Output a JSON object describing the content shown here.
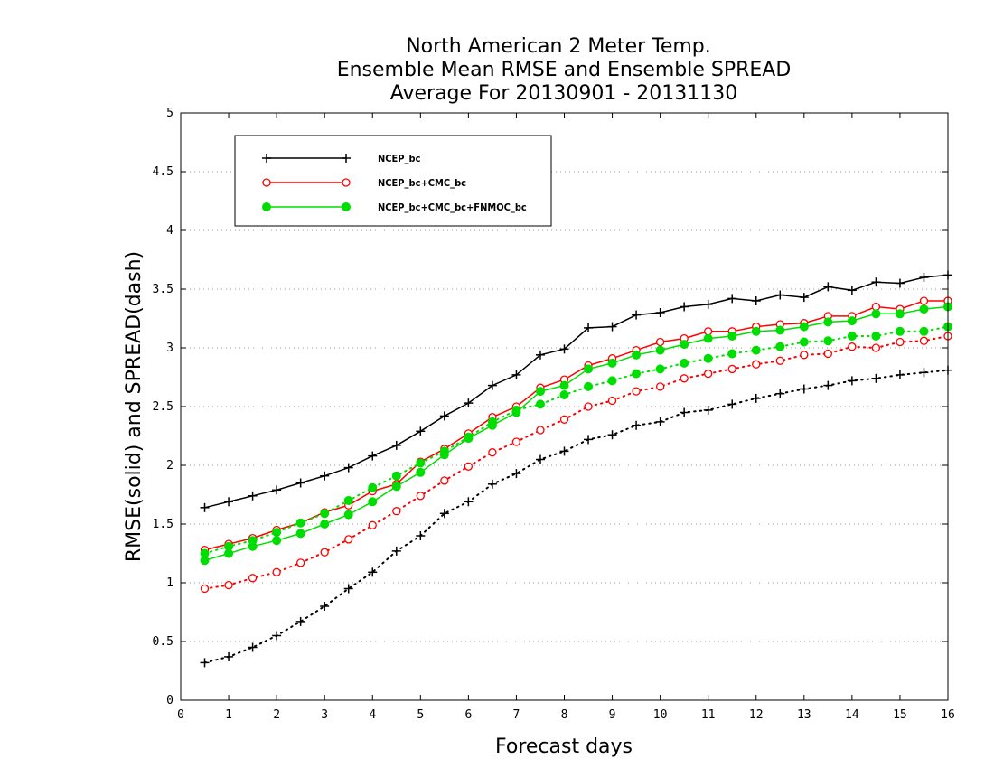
{
  "chart_data": {
    "type": "line",
    "title": [
      "North American 2 Meter Temp.",
      "Ensemble Mean RMSE and Ensemble SPREAD",
      "Average For 20130901 - 20131130"
    ],
    "xlabel": "Forecast days",
    "ylabel": "RMSE(solid) and SPREAD(dash)",
    "xlim": [
      0,
      16
    ],
    "ylim": [
      0,
      5
    ],
    "xticks": [
      "0",
      "1",
      "2",
      "3",
      "4",
      "5",
      "6",
      "7",
      "8",
      "9",
      "10",
      "11",
      "12",
      "13",
      "14",
      "15",
      "16"
    ],
    "yticks": [
      "0",
      "0.5",
      "1",
      "1.5",
      "2",
      "2.5",
      "3",
      "3.5",
      "4",
      "4.5",
      "5"
    ],
    "grid": "horizontal dotted",
    "legend_position": "top-left",
    "x": [
      0.5,
      1,
      1.5,
      2,
      2.5,
      3,
      3.5,
      4,
      4.5,
      5,
      5.5,
      6,
      6.5,
      7,
      7.5,
      8,
      8.5,
      9,
      9.5,
      10,
      10.5,
      11,
      11.5,
      12,
      12.5,
      13,
      13.5,
      14,
      14.5,
      15,
      15.5,
      16
    ],
    "series": [
      {
        "name": "NCEP_bc",
        "color": "#000000",
        "marker": "plus",
        "rmse": [
          1.64,
          1.69,
          1.74,
          1.79,
          1.85,
          1.91,
          1.98,
          2.08,
          2.17,
          2.29,
          2.42,
          2.53,
          2.68,
          2.77,
          2.94,
          2.99,
          3.17,
          3.18,
          3.28,
          3.3,
          3.35,
          3.37,
          3.42,
          3.4,
          3.45,
          3.43,
          3.52,
          3.49,
          3.56,
          3.55,
          3.6,
          3.62
        ],
        "spread": [
          0.32,
          0.37,
          0.45,
          0.55,
          0.67,
          0.8,
          0.95,
          1.09,
          1.27,
          1.4,
          1.59,
          1.69,
          1.84,
          1.93,
          2.05,
          2.12,
          2.22,
          2.26,
          2.34,
          2.37,
          2.45,
          2.47,
          2.52,
          2.57,
          2.61,
          2.65,
          2.68,
          2.72,
          2.74,
          2.77,
          2.79,
          2.81
        ]
      },
      {
        "name": "NCEP_bc+CMC_bc",
        "color": "#ff0000",
        "marker": "open-circle",
        "rmse": [
          1.28,
          1.33,
          1.38,
          1.45,
          1.51,
          1.6,
          1.66,
          1.78,
          1.84,
          2.03,
          2.14,
          2.27,
          2.41,
          2.5,
          2.66,
          2.73,
          2.85,
          2.91,
          2.98,
          3.05,
          3.08,
          3.14,
          3.14,
          3.18,
          3.2,
          3.21,
          3.27,
          3.27,
          3.35,
          3.33,
          3.4,
          3.4
        ],
        "spread": [
          0.95,
          0.98,
          1.04,
          1.09,
          1.17,
          1.26,
          1.37,
          1.49,
          1.61,
          1.74,
          1.87,
          1.99,
          2.11,
          2.2,
          2.3,
          2.39,
          2.5,
          2.55,
          2.63,
          2.67,
          2.74,
          2.78,
          2.82,
          2.86,
          2.89,
          2.94,
          2.95,
          3.01,
          3.0,
          3.05,
          3.06,
          3.1
        ]
      },
      {
        "name": "NCEP_bc+CMC_bc+FNMOC_bc",
        "color": "#00dd00",
        "marker": "filled-circle",
        "rmse": [
          1.19,
          1.25,
          1.31,
          1.36,
          1.42,
          1.5,
          1.58,
          1.69,
          1.82,
          1.94,
          2.09,
          2.23,
          2.34,
          2.45,
          2.63,
          2.68,
          2.82,
          2.87,
          2.94,
          2.98,
          3.03,
          3.08,
          3.1,
          3.14,
          3.15,
          3.18,
          3.22,
          3.23,
          3.29,
          3.29,
          3.33,
          3.35
        ],
        "spread": [
          1.25,
          1.31,
          1.36,
          1.43,
          1.51,
          1.59,
          1.7,
          1.81,
          1.91,
          2.02,
          2.12,
          2.24,
          2.37,
          2.47,
          2.52,
          2.6,
          2.67,
          2.72,
          2.78,
          2.82,
          2.87,
          2.91,
          2.95,
          2.98,
          3.01,
          3.05,
          3.06,
          3.1,
          3.1,
          3.14,
          3.14,
          3.18
        ]
      }
    ]
  }
}
